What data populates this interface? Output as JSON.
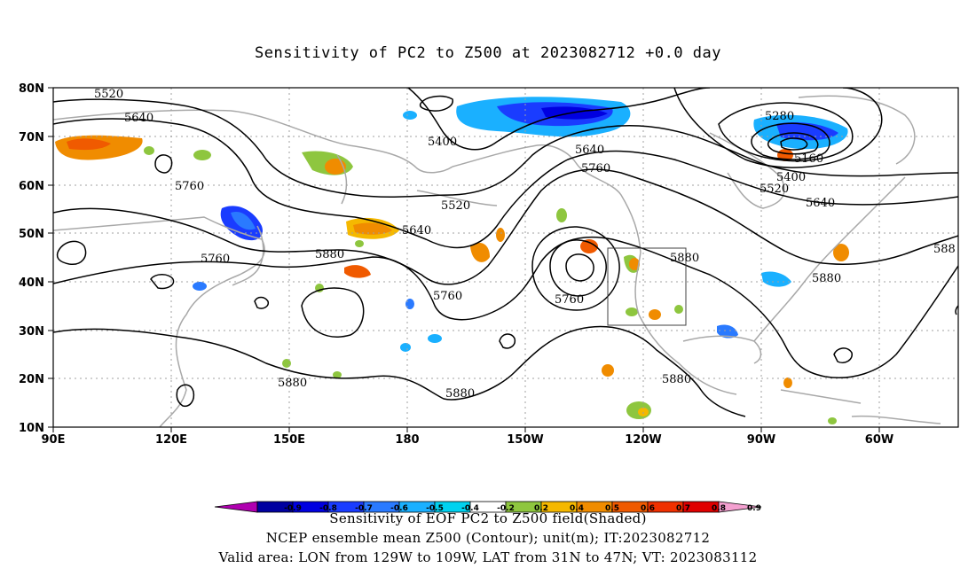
{
  "title": "Sensitivity of PC2 to Z500 at 2023082712 +0.0 day",
  "axes": {
    "lat_labels": [
      "80N",
      "70N",
      "60N",
      "50N",
      "40N",
      "30N",
      "20N",
      "10N"
    ],
    "lon_labels": [
      "90E",
      "120E",
      "150E",
      "180",
      "150W",
      "120W",
      "90W",
      "60W"
    ]
  },
  "contour_labels": [
    "5520",
    "5640",
    "5760",
    "5400",
    "5520",
    "5640",
    "5760",
    "5880",
    "5640",
    "5760",
    "5280",
    "5160",
    "5400",
    "5520",
    "5640",
    "5880",
    "5760",
    "5760",
    "5880",
    "5880",
    "5880",
    "5880",
    "588"
  ],
  "colorbar": {
    "ticks": [
      "-0.9",
      "-0.8",
      "-0.7",
      "-0.6",
      "-0.5",
      "-0.4",
      "-0.2",
      "0.2",
      "0.4",
      "0.5",
      "0.6",
      "0.7",
      "0.8",
      "0.9"
    ],
    "colors": [
      "#b000b0",
      "#0000a0",
      "#0000e0",
      "#1a3cff",
      "#2a7aff",
      "#1ab0ff",
      "#00d2f0",
      "#ffffff",
      "#8ec63f",
      "#f5b800",
      "#f08c00",
      "#f05a00",
      "#f03000",
      "#e00000",
      "#f4a0d0"
    ]
  },
  "footer": {
    "caption": "Sensitivity of EOF PC2 to Z500 field(Shaded)",
    "line2": "NCEP ensemble mean Z500 (Contour); unit(m); IT:2023082712",
    "line3": "Valid area: LON from 129W to 109W, LAT from 31N to 47N; VT: 2023083112"
  },
  "colors": {
    "contour": "#000000",
    "coastline": "#a8a8a8",
    "grid": "#a0a0a0"
  }
}
